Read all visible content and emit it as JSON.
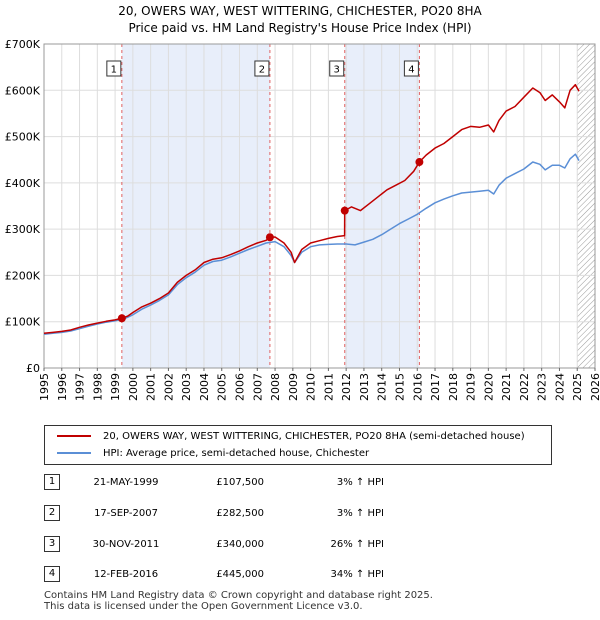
{
  "title_line1": "20, OWERS WAY, WEST WITTERING, CHICHESTER, PO20 8HA",
  "title_line2": "Price paid vs. HM Land Registry's House Price Index (HPI)",
  "chart_data": {
    "type": "line",
    "xlim": [
      1995,
      2026
    ],
    "ylim": [
      0,
      700000
    ],
    "x_ticks": [
      "1995",
      "1996",
      "1997",
      "1998",
      "1999",
      "2000",
      "2001",
      "2002",
      "2003",
      "2004",
      "2005",
      "2006",
      "2007",
      "2008",
      "2009",
      "2010",
      "2011",
      "2012",
      "2013",
      "2014",
      "2015",
      "2016",
      "2017",
      "2018",
      "2019",
      "2020",
      "2021",
      "2022",
      "2023",
      "2024",
      "2025",
      "2026"
    ],
    "y_ticks": [
      {
        "value": 0,
        "label": "£0"
      },
      {
        "value": 100000,
        "label": "£100K"
      },
      {
        "value": 200000,
        "label": "£200K"
      },
      {
        "value": 300000,
        "label": "£300K"
      },
      {
        "value": 400000,
        "label": "£400K"
      },
      {
        "value": 500000,
        "label": "£500K"
      },
      {
        "value": 600000,
        "label": "£600K"
      },
      {
        "value": 700000,
        "label": "£700K"
      }
    ],
    "hatch_from": 2025.0,
    "shaded_spans": [
      [
        1999.38,
        2007.71
      ],
      [
        2011.92,
        2016.12
      ]
    ],
    "series": [
      {
        "name": "20, OWERS WAY, WEST WITTERING, CHICHESTER, PO20 8HA (semi-detached house)",
        "color": "#c00000",
        "x": [
          1995.0,
          1995.5,
          1996.0,
          1996.5,
          1997.0,
          1997.5,
          1998.0,
          1998.5,
          1999.0,
          1999.38,
          1999.7,
          2000.0,
          2000.5,
          2001.0,
          2001.5,
          2002.0,
          2002.5,
          2003.0,
          2003.5,
          2004.0,
          2004.5,
          2005.0,
          2005.5,
          2006.0,
          2006.5,
          2007.0,
          2007.5,
          2007.71,
          2008.0,
          2008.5,
          2008.9,
          2009.1,
          2009.5,
          2010.0,
          2010.5,
          2011.0,
          2011.5,
          2011.91,
          2011.92,
          2012.3,
          2012.8,
          2013.3,
          2013.8,
          2014.3,
          2014.8,
          2015.3,
          2015.8,
          2016.12,
          2016.5,
          2017.0,
          2017.5,
          2018.0,
          2018.5,
          2019.0,
          2019.5,
          2020.0,
          2020.3,
          2020.6,
          2021.0,
          2021.5,
          2022.0,
          2022.5,
          2022.9,
          2023.2,
          2023.6,
          2024.0,
          2024.3,
          2024.6,
          2024.9,
          2025.1
        ],
        "values": [
          75000,
          77000,
          79000,
          82000,
          88000,
          93000,
          97000,
          101000,
          104000,
          107500,
          112000,
          120000,
          132000,
          140000,
          150000,
          162000,
          185000,
          200000,
          212000,
          228000,
          235000,
          238000,
          245000,
          253000,
          262000,
          270000,
          276000,
          282500,
          283000,
          270000,
          250000,
          228000,
          256000,
          270000,
          275000,
          280000,
          284000,
          286000,
          340000,
          348000,
          340000,
          355000,
          370000,
          385000,
          395000,
          405000,
          425000,
          445000,
          460000,
          475000,
          485000,
          500000,
          515000,
          522000,
          520000,
          525000,
          510000,
          535000,
          555000,
          565000,
          585000,
          605000,
          595000,
          578000,
          590000,
          575000,
          562000,
          600000,
          612000,
          598000
        ]
      },
      {
        "name": "HPI: Average price, semi-detached house, Chichester",
        "color": "#5b8fd6",
        "x": [
          1995.0,
          1995.5,
          1996.0,
          1996.5,
          1997.0,
          1997.5,
          1998.0,
          1998.5,
          1999.0,
          1999.5,
          2000.0,
          2000.5,
          2001.0,
          2001.5,
          2002.0,
          2002.5,
          2003.0,
          2003.5,
          2004.0,
          2004.5,
          2005.0,
          2005.5,
          2006.0,
          2006.5,
          2007.0,
          2007.5,
          2008.0,
          2008.5,
          2008.9,
          2009.1,
          2009.5,
          2010.0,
          2010.5,
          2011.0,
          2011.5,
          2012.0,
          2012.5,
          2013.0,
          2013.5,
          2014.0,
          2014.5,
          2015.0,
          2015.5,
          2016.0,
          2016.5,
          2017.0,
          2017.5,
          2018.0,
          2018.5,
          2019.0,
          2019.5,
          2020.0,
          2020.3,
          2020.6,
          2021.0,
          2021.5,
          2022.0,
          2022.5,
          2022.9,
          2023.2,
          2023.6,
          2024.0,
          2024.3,
          2024.6,
          2024.9,
          2025.1
        ],
        "values": [
          73000,
          75000,
          77000,
          80000,
          85000,
          90000,
          95000,
          99000,
          102000,
          106000,
          115000,
          127000,
          136000,
          146000,
          158000,
          180000,
          195000,
          207000,
          222000,
          230000,
          233000,
          240000,
          248000,
          256000,
          263000,
          270000,
          273000,
          262000,
          243000,
          228000,
          250000,
          262000,
          266000,
          267000,
          268000,
          268000,
          266000,
          272000,
          278000,
          288000,
          300000,
          312000,
          322000,
          332000,
          345000,
          357000,
          365000,
          372000,
          378000,
          380000,
          382000,
          384000,
          376000,
          395000,
          410000,
          420000,
          430000,
          445000,
          440000,
          428000,
          438000,
          438000,
          432000,
          452000,
          462000,
          448000
        ]
      }
    ],
    "markers": [
      {
        "id": "1",
        "x": 1999.38,
        "y": 107500
      },
      {
        "id": "2",
        "x": 2007.71,
        "y": 282500
      },
      {
        "id": "3",
        "x": 2011.92,
        "y": 340000
      },
      {
        "id": "4",
        "x": 2016.12,
        "y": 445000
      }
    ]
  },
  "legend": {
    "property": "20, OWERS WAY, WEST WITTERING, CHICHESTER, PO20 8HA (semi-detached house)",
    "hpi": "HPI: Average price, semi-detached house, Chichester"
  },
  "transactions": [
    {
      "num": "1",
      "date": "21-MAY-1999",
      "price": "£107,500",
      "hpi": "3% ↑ HPI"
    },
    {
      "num": "2",
      "date": "17-SEP-2007",
      "price": "£282,500",
      "hpi": "3% ↑ HPI"
    },
    {
      "num": "3",
      "date": "30-NOV-2011",
      "price": "£340,000",
      "hpi": "26% ↑ HPI"
    },
    {
      "num": "4",
      "date": "12-FEB-2016",
      "price": "£445,000",
      "hpi": "34% ↑ HPI"
    }
  ],
  "footer_line1": "Contains HM Land Registry data © Crown copyright and database right 2025.",
  "footer_line2": "This data is licensed under the Open Government Licence v3.0."
}
